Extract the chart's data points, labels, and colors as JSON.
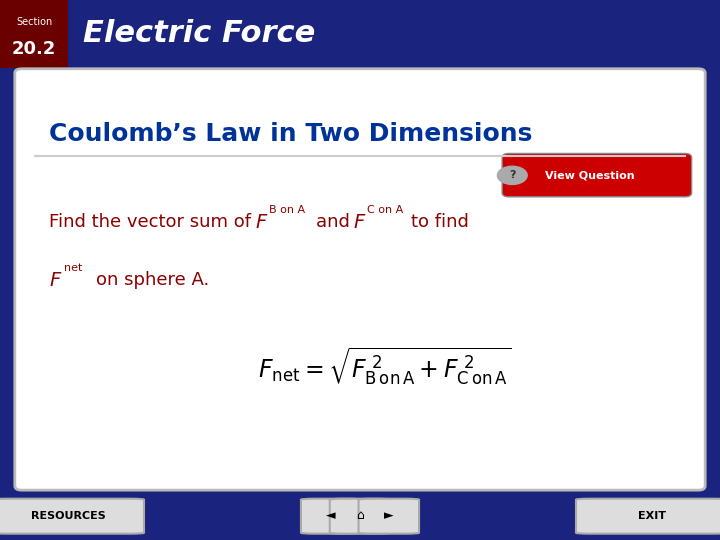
{
  "header_bg_color": "#8B0000",
  "header_text_color": "#FFFFFF",
  "section_label": "Section",
  "section_number": "20.2",
  "title_text": "Electric Force",
  "slide_bg_color": "#1a237e",
  "content_bg_color": "#FFFFFF",
  "content_title": "Coulomb’s Law in Two Dimensions",
  "content_title_color": "#003399",
  "body_text_color": "#8B0000",
  "body_plain_color": "#000000",
  "formula_color": "#000000",
  "footer_bg_color": "#1a237e",
  "footer_text_color": "#FFFFFF",
  "resources_text": "RESOURCES",
  "exit_text": "EXIT",
  "view_question_text": "View Question",
  "fig_width": 7.2,
  "fig_height": 5.4
}
